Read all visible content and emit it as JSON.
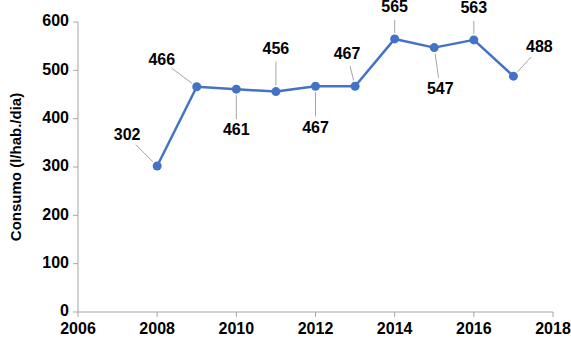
{
  "chart_data": {
    "type": "line",
    "y_label": "Consumo (l/hab./dia)",
    "x": [
      2008,
      2009,
      2010,
      2011,
      2012,
      2013,
      2014,
      2015,
      2016,
      2017
    ],
    "values": [
      302,
      466,
      461,
      456,
      467,
      467,
      565,
      547,
      563,
      488
    ],
    "color": "#4472c4",
    "marker": "circle",
    "data_labels": true,
    "grid": false,
    "xlim": [
      2006,
      2018
    ],
    "xticks": [
      2006,
      2008,
      2010,
      2012,
      2014,
      2016,
      2018
    ],
    "ylim": [
      0,
      600
    ],
    "yticks": [
      0,
      100,
      200,
      300,
      400,
      500,
      600
    ]
  }
}
